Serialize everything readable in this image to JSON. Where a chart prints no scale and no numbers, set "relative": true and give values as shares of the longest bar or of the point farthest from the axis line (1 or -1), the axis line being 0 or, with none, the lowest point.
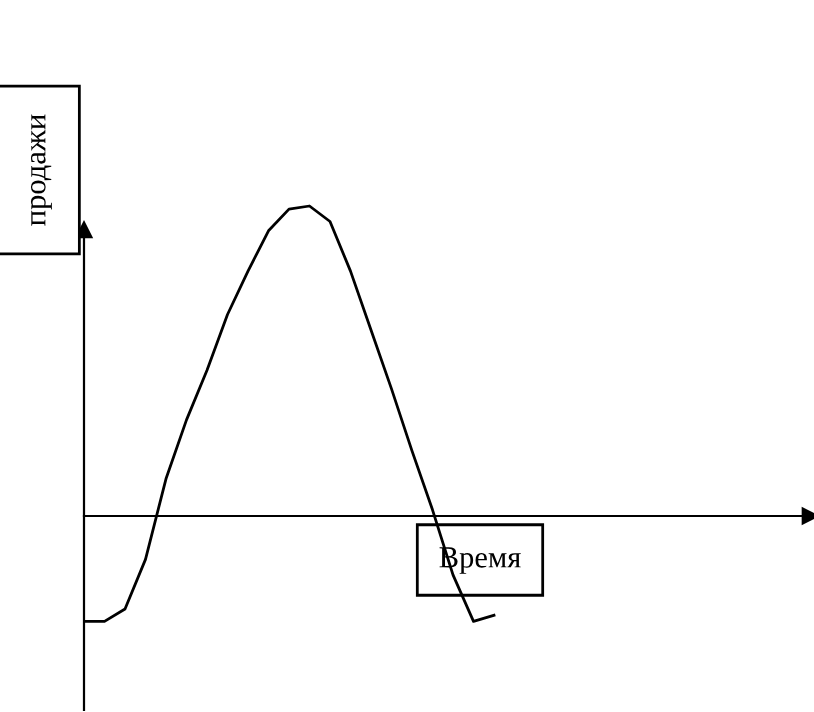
{
  "chart_data": {
    "type": "line",
    "relative": true,
    "xlabel": "Время",
    "ylabel": "продажи",
    "categories": [
      null,
      null,
      null,
      null,
      null,
      null,
      null,
      null,
      null,
      null,
      null,
      null,
      null,
      null,
      null,
      null,
      null,
      null,
      null,
      null,
      null
    ],
    "series": [
      {
        "color": "#000000",
        "values": [
          -0.34,
          -0.34,
          -0.3,
          -0.14,
          0.12,
          0.31,
          0.47,
          0.65,
          0.79,
          0.92,
          0.99,
          1.0,
          0.95,
          0.79,
          0.6,
          0.41,
          0.21,
          0.02,
          -0.19,
          -0.34,
          -0.32
        ]
      }
    ],
    "marker": "none",
    "line_style": "solid"
  }
}
